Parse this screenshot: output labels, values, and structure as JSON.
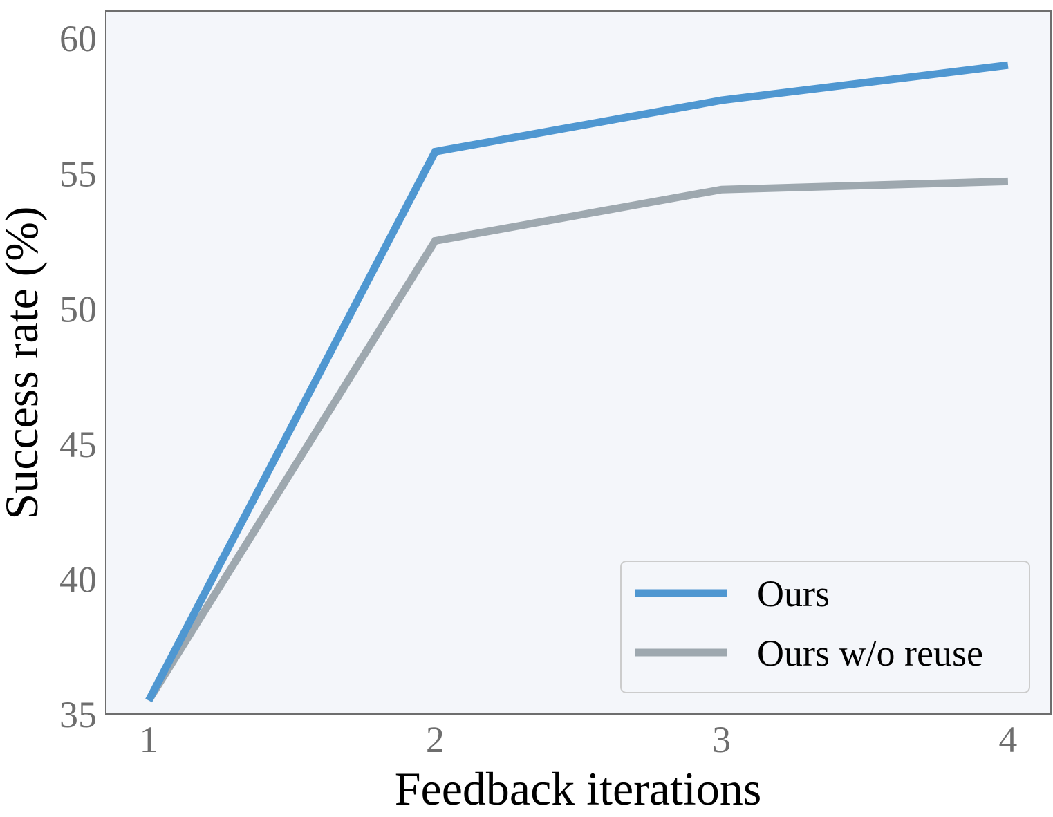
{
  "chart_data": {
    "type": "line",
    "xlabel": "Feedback iterations",
    "ylabel": "Success rate (%)",
    "x": [
      1,
      2,
      3,
      4
    ],
    "xticks": [
      "1",
      "2",
      "3",
      "4"
    ],
    "xlim": [
      0.85,
      4.15
    ],
    "ylim": [
      35,
      61
    ],
    "yticks": [
      "35",
      "40",
      "45",
      "50",
      "55",
      "60"
    ],
    "grid": false,
    "legend_position": "bottom-right",
    "series": [
      {
        "name": "Ours",
        "values": [
          35.5,
          55.8,
          57.7,
          59.0
        ],
        "color": "#4f97d1"
      },
      {
        "name": "Ours w/o reuse",
        "values": [
          35.5,
          52.5,
          54.4,
          54.7
        ],
        "color": "#9ea8af"
      }
    ],
    "colors": {
      "plot_background": "#f4f6fa",
      "axis_frame": "#6e6e6e",
      "tick_text": "#6e6e6e",
      "legend_border": "#cccccc"
    }
  }
}
